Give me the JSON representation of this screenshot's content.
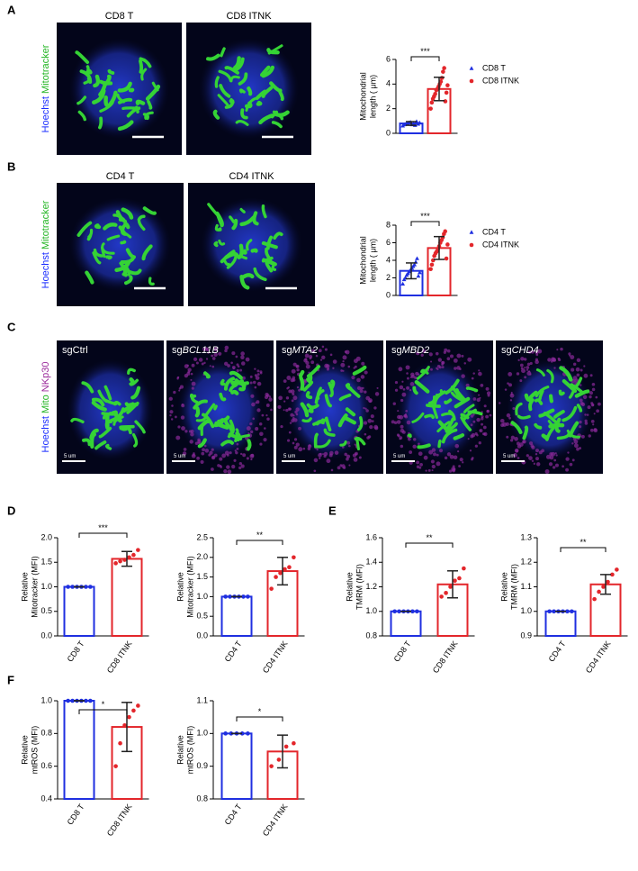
{
  "panels": [
    "A",
    "B",
    "C",
    "D",
    "E",
    "F"
  ],
  "image_rows": [
    {
      "titles": [
        "CD8 T",
        "CD8 ITNK"
      ],
      "stains": [
        {
          "text": "Hoechst",
          "color": "#1a2cff"
        },
        {
          "text": "Mitotracker",
          "color": "#22b522"
        }
      ]
    },
    {
      "titles": [
        "CD4 T",
        "CD4 ITNK"
      ],
      "stains": [
        {
          "text": "Hoechst",
          "color": "#1a2cff"
        },
        {
          "text": "Mitotracker",
          "color": "#22b522"
        }
      ]
    },
    {
      "titles": [
        {
          "prefix": "sg",
          "name": "Ctrl",
          "italic": false
        },
        {
          "prefix": "sg",
          "name": "BCL11B",
          "italic": true
        },
        {
          "prefix": "sg",
          "name": "MTA2",
          "italic": true
        },
        {
          "prefix": "sg",
          "name": "MBD2",
          "italic": true
        },
        {
          "prefix": "sg",
          "name": "CHD4",
          "italic": true
        }
      ],
      "stains": [
        {
          "text": "Hoechst",
          "color": "#1a2cff"
        },
        {
          "text": "Mito",
          "color": "#22b522"
        },
        {
          "text": "NKp30",
          "color": "#9b2a9b"
        }
      ],
      "scale_label": "5 um"
    }
  ],
  "chart_data": [
    {
      "type": "bar",
      "ylabel": [
        "Mitochondrial",
        "length ( μm)"
      ],
      "categories": [
        "CD8 T",
        "CD8 ITNK"
      ],
      "values": [
        0.8,
        3.6
      ],
      "errors": [
        0.15,
        0.95
      ],
      "points": [
        [
          0.6,
          0.7,
          0.75,
          0.8,
          0.85,
          0.9,
          0.7,
          0.8,
          0.65,
          0.95,
          0.75,
          0.85
        ],
        [
          2.0,
          2.5,
          2.8,
          3.0,
          3.2,
          3.5,
          3.6,
          3.8,
          4.0,
          4.2,
          4.5,
          5.0,
          5.3,
          2.6,
          3.3,
          3.9
        ]
      ],
      "colors": [
        "#1f2fe0",
        "#e3262b"
      ],
      "markers": [
        "triangle",
        "circle"
      ],
      "ylim": [
        0,
        6
      ],
      "yticks": [
        0,
        2,
        4,
        6
      ],
      "significance": "***",
      "legend": "right"
    },
    {
      "type": "bar",
      "ylabel": [
        "Mitochondrial",
        "length ( μm)"
      ],
      "categories": [
        "CD4 T",
        "CD4 ITNK"
      ],
      "values": [
        2.8,
        5.4
      ],
      "errors": [
        0.9,
        1.3
      ],
      "points": [
        [
          1.3,
          1.8,
          2.0,
          2.3,
          2.5,
          2.7,
          2.9,
          3.1,
          3.3,
          3.5,
          3.8,
          4.2,
          2.2,
          2.6
        ],
        [
          3.0,
          3.5,
          4.0,
          4.5,
          4.8,
          5.0,
          5.3,
          5.6,
          6.0,
          6.3,
          6.6,
          7.0,
          7.3,
          4.2,
          5.8
        ]
      ],
      "colors": [
        "#1f2fe0",
        "#e3262b"
      ],
      "markers": [
        "triangle",
        "circle"
      ],
      "ylim": [
        0,
        8
      ],
      "yticks": [
        0,
        2,
        4,
        6,
        8
      ],
      "significance": "***",
      "legend": "right"
    },
    {
      "type": "bar",
      "ylabel": [
        "Relative",
        "Mitotracker (MFI)"
      ],
      "categories": [
        "CD8 T",
        "CD8 ITNK"
      ],
      "values": [
        1.0,
        1.57
      ],
      "errors": [
        0,
        0.15
      ],
      "points": [
        [
          1,
          1,
          1,
          1,
          1,
          1
        ],
        [
          1.48,
          1.52,
          1.55,
          1.6,
          1.65,
          1.75
        ]
      ],
      "colors": [
        "#1f2fe0",
        "#e3262b"
      ],
      "markers": [
        "circle",
        "circle"
      ],
      "ylim": [
        0,
        2
      ],
      "yticks": [
        {
          "value": 0,
          "label": "0.0"
        },
        0.5,
        {
          "value": 1,
          "label": "1.0"
        },
        1.5,
        {
          "value": 2,
          "label": "2.0"
        }
      ],
      "significance": "***"
    },
    {
      "type": "bar",
      "ylabel": [
        "Relative",
        "Mitotracker (MFI)"
      ],
      "categories": [
        "CD4 T",
        "CD4 ITNK"
      ],
      "values": [
        1.0,
        1.65
      ],
      "errors": [
        0,
        0.35
      ],
      "points": [
        [
          1,
          1,
          1,
          1,
          1,
          1
        ],
        [
          1.2,
          1.5,
          1.6,
          1.7,
          1.75,
          2.0
        ]
      ],
      "colors": [
        "#1f2fe0",
        "#e3262b"
      ],
      "markers": [
        "circle",
        "circle"
      ],
      "ylim": [
        0,
        2.5
      ],
      "yticks": [
        {
          "value": 0,
          "label": "0.0"
        },
        0.5,
        {
          "value": 1,
          "label": "1.0"
        },
        1.5,
        {
          "value": 2,
          "label": "2.0"
        },
        2.5
      ],
      "significance": "**"
    },
    {
      "type": "bar",
      "ylabel": [
        "Relative",
        "TMRM (MFI)"
      ],
      "categories": [
        "CD8 T",
        "CD8 ITNK"
      ],
      "values": [
        1.0,
        1.22
      ],
      "errors": [
        0,
        0.11
      ],
      "points": [
        [
          1,
          1,
          1,
          1,
          1,
          1
        ],
        [
          1.12,
          1.15,
          1.2,
          1.25,
          1.27,
          1.35
        ]
      ],
      "colors": [
        "#1f2fe0",
        "#e3262b"
      ],
      "markers": [
        "circle",
        "circle"
      ],
      "ylim": [
        0.8,
        1.6
      ],
      "yticks": [
        0.8,
        {
          "value": 1,
          "label": "1.0"
        },
        1.2,
        1.4,
        1.6
      ],
      "significance": "**"
    },
    {
      "type": "bar",
      "ylabel": [
        "Relative",
        "TMRM (MFI)"
      ],
      "categories": [
        "CD4 T",
        "CD4 ITNK"
      ],
      "values": [
        1.0,
        1.11
      ],
      "errors": [
        0,
        0.04
      ],
      "points": [
        [
          1,
          1,
          1,
          1,
          1,
          1
        ],
        [
          1.05,
          1.08,
          1.1,
          1.12,
          1.15,
          1.17
        ]
      ],
      "colors": [
        "#1f2fe0",
        "#e3262b"
      ],
      "markers": [
        "circle",
        "circle"
      ],
      "ylim": [
        0.9,
        1.3
      ],
      "yticks": [
        0.9,
        {
          "value": 1,
          "label": "1.0"
        },
        1.1,
        1.2,
        1.3
      ],
      "significance": "**"
    },
    {
      "type": "bar",
      "ylabel": [
        "Relative",
        "mtROS (MFI)"
      ],
      "categories": [
        "CD8 T",
        "CD8 ITNK"
      ],
      "values": [
        1.0,
        0.84
      ],
      "errors": [
        0,
        0.15
      ],
      "points": [
        [
          1,
          1,
          1,
          1,
          1,
          1
        ],
        [
          0.6,
          0.74,
          0.85,
          0.9,
          0.94,
          0.97
        ]
      ],
      "colors": [
        "#1f2fe0",
        "#e3262b"
      ],
      "markers": [
        "circle",
        "circle"
      ],
      "ylim": [
        0.4,
        1.0
      ],
      "yticks": [
        0.4,
        0.6,
        0.8,
        {
          "value": 1,
          "label": "1.0"
        }
      ],
      "significance": "*"
    },
    {
      "type": "bar",
      "ylabel": [
        "Relative",
        "mtROS (MFI)"
      ],
      "categories": [
        "CD4 T",
        "CD4 ITNK"
      ],
      "values": [
        1.0,
        0.945
      ],
      "errors": [
        0,
        0.05
      ],
      "points": [
        [
          1,
          1,
          1,
          1,
          1
        ],
        [
          0.9,
          0.92,
          0.96,
          0.97
        ]
      ],
      "colors": [
        "#1f2fe0",
        "#e3262b"
      ],
      "markers": [
        "circle",
        "circle"
      ],
      "ylim": [
        0.8,
        1.1
      ],
      "yticks": [
        0.8,
        0.9,
        {
          "value": 1,
          "label": "1.0"
        },
        1.1
      ],
      "significance": "*"
    }
  ]
}
